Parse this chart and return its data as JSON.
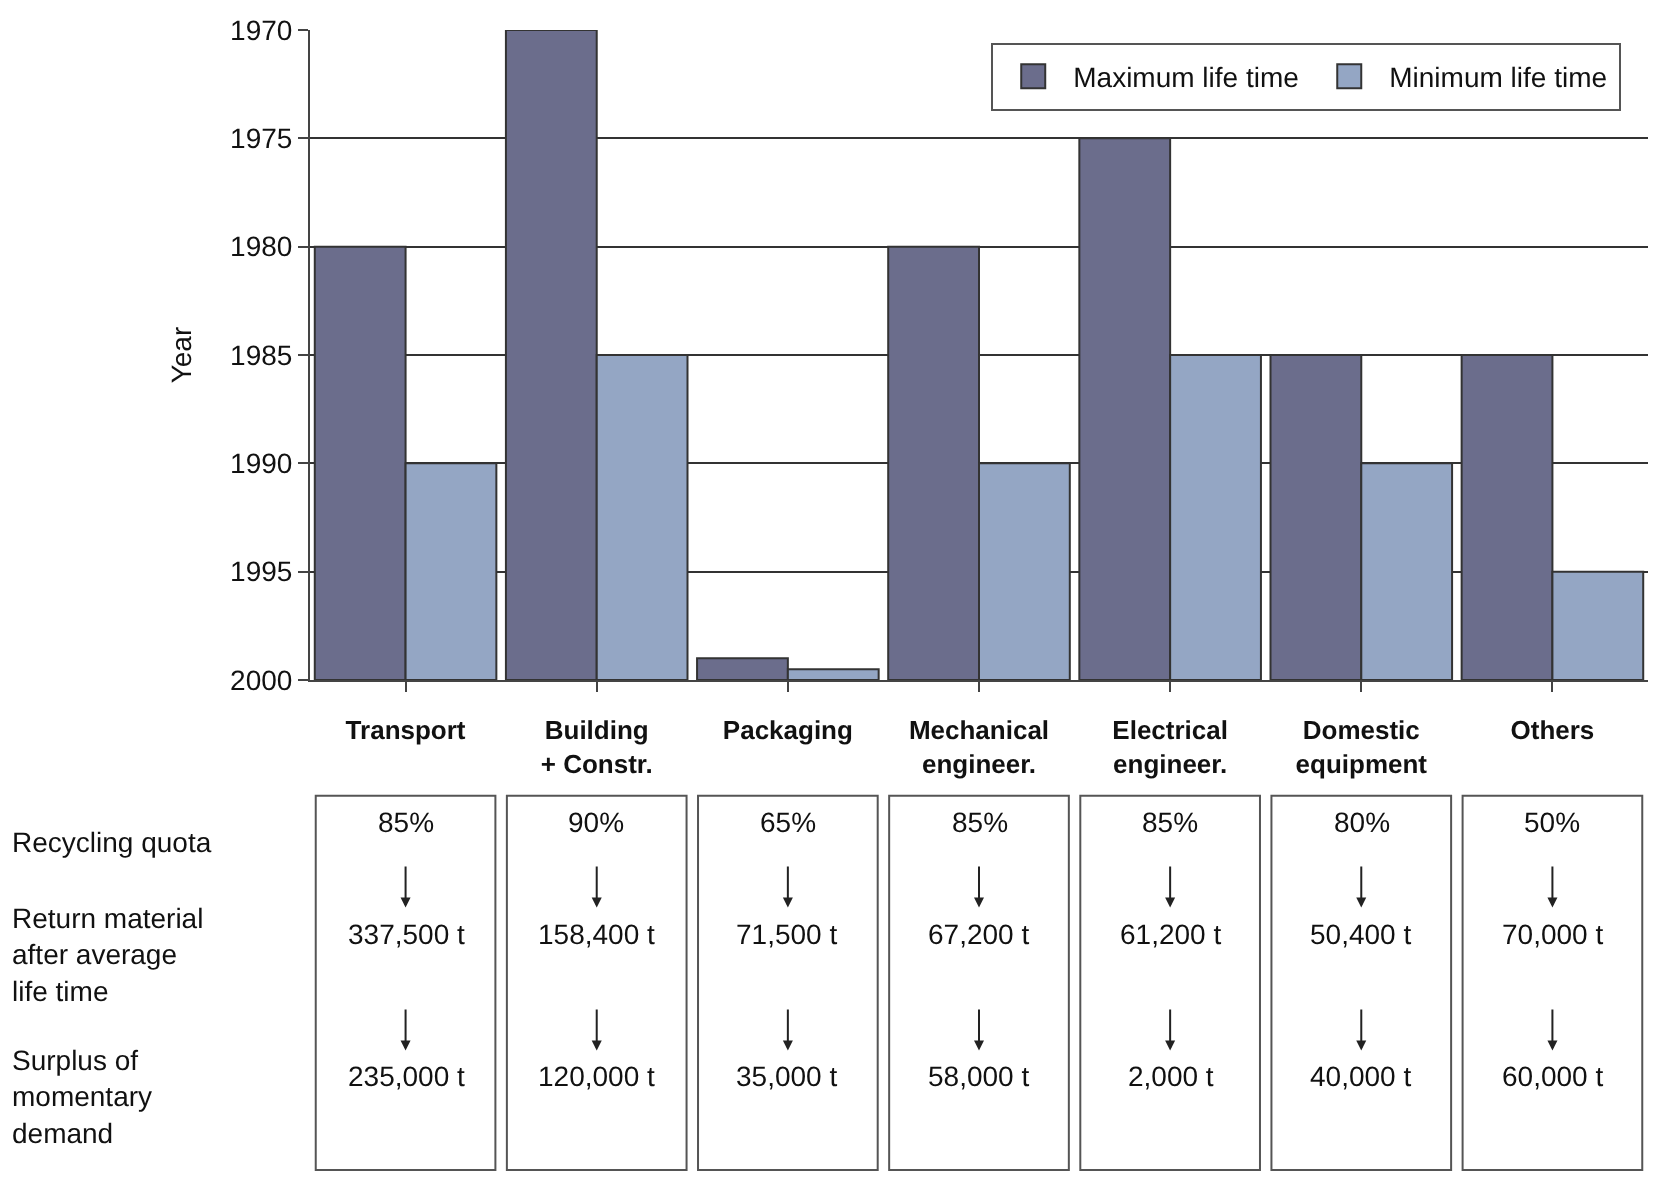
{
  "chart_data": {
    "type": "bar",
    "ylabel": "Year",
    "categories": [
      "Transport",
      "Building\n+ Constr.",
      "Packaging",
      "Mechanical\nengineer.",
      "Electrical\nengineer.",
      "Domestic\nequipment",
      "Others"
    ],
    "series": [
      {
        "name": "Maximum life time",
        "color": "#6b6d8c",
        "base": [
          1980,
          1970,
          1999,
          1980,
          1975,
          1985,
          1985
        ],
        "values": [
          20,
          30,
          1,
          20,
          25,
          15,
          15
        ]
      },
      {
        "name": "Minimum life time",
        "color": "#94a6c4",
        "base": [
          1990,
          1985,
          1999.5,
          1990,
          1985,
          1990,
          1995
        ],
        "values": [
          10,
          15,
          0.5,
          10,
          15,
          10,
          5
        ]
      }
    ],
    "ylim": [
      2000,
      1970
    ],
    "yticks": [
      1970,
      1975,
      1980,
      1985,
      1990,
      1995,
      2000
    ],
    "grid": "y",
    "legend": "top right",
    "annotations": [
      "Recycling quota",
      "Return material\nafter average\nlife time",
      "Surplus of\nmomentary\ndemand",
      "85%",
      "90%",
      "65%",
      "85%",
      "85%",
      "80%",
      "50%",
      "337,500 t",
      "158,400 t",
      "71,500 t",
      "67,200 t",
      "61,200 t",
      "50,400 t",
      "70,000 t",
      "235,000 t",
      "120,000 t",
      "35,000 t",
      "58,000 t",
      "2,000 t",
      "40,000 t",
      "60,000 t"
    ]
  }
}
